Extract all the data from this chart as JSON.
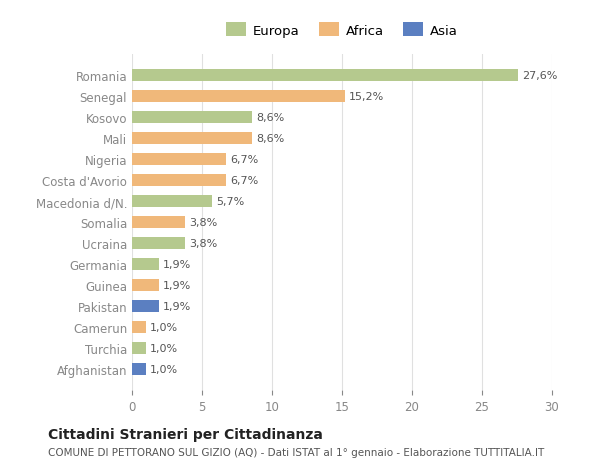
{
  "countries": [
    "Romania",
    "Senegal",
    "Kosovo",
    "Mali",
    "Nigeria",
    "Costa d'Avorio",
    "Macedonia d/N.",
    "Somalia",
    "Ucraina",
    "Germania",
    "Guinea",
    "Pakistan",
    "Camerun",
    "Turchia",
    "Afghanistan"
  ],
  "values": [
    27.6,
    15.2,
    8.6,
    8.6,
    6.7,
    6.7,
    5.7,
    3.8,
    3.8,
    1.9,
    1.9,
    1.9,
    1.0,
    1.0,
    1.0
  ],
  "labels": [
    "27,6%",
    "15,2%",
    "8,6%",
    "8,6%",
    "6,7%",
    "6,7%",
    "5,7%",
    "3,8%",
    "3,8%",
    "1,9%",
    "1,9%",
    "1,9%",
    "1,0%",
    "1,0%",
    "1,0%"
  ],
  "continents": [
    "Europa",
    "Africa",
    "Europa",
    "Africa",
    "Africa",
    "Africa",
    "Europa",
    "Africa",
    "Europa",
    "Europa",
    "Africa",
    "Asia",
    "Africa",
    "Europa",
    "Asia"
  ],
  "colors": {
    "Europa": "#b5c98e",
    "Africa": "#f0b87a",
    "Asia": "#5b7fc1"
  },
  "legend_order": [
    "Europa",
    "Africa",
    "Asia"
  ],
  "title": "Cittadini Stranieri per Cittadinanza",
  "subtitle": "COMUNE DI PETTORANO SUL GIZIO (AQ) - Dati ISTAT al 1° gennaio - Elaborazione TUTTITALIA.IT",
  "xlim": [
    0,
    30
  ],
  "xticks": [
    0,
    5,
    10,
    15,
    20,
    25,
    30
  ],
  "background_color": "#ffffff",
  "grid_color": "#e0e0e0",
  "bar_height": 0.55
}
